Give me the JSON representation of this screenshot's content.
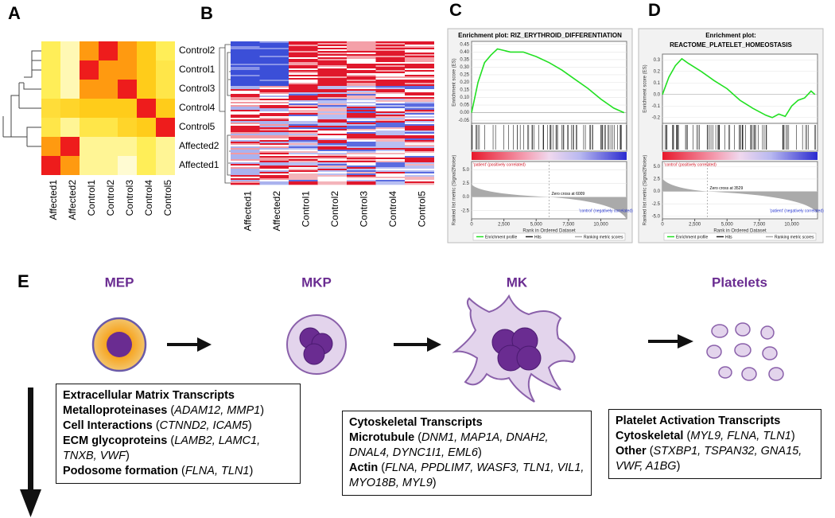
{
  "panel_a": {
    "label": "A",
    "rows": [
      "Control2",
      "Control1",
      "Control3",
      "Control4",
      "Control5",
      "Affected2",
      "Affected1"
    ],
    "columns": [
      "Affected1",
      "Affected2",
      "Control1",
      "Control2",
      "Control3",
      "Control4",
      "Control5"
    ],
    "values": [
      [
        0.4,
        0.25,
        0.8,
        1,
        0.8,
        0.6,
        0.4
      ],
      [
        0.4,
        0.25,
        1,
        0.8,
        0.8,
        0.6,
        0.45
      ],
      [
        0.4,
        0.25,
        0.8,
        0.8,
        1,
        0.6,
        0.45
      ],
      [
        0.5,
        0.55,
        0.6,
        0.6,
        0.6,
        1,
        0.6
      ],
      [
        0.45,
        0.3,
        0.45,
        0.45,
        0.55,
        0.6,
        1
      ],
      [
        0.8,
        1,
        0.3,
        0.3,
        0.3,
        0.4,
        0.3
      ],
      [
        1,
        0.8,
        0.3,
        0.3,
        0.2,
        0.4,
        0.3
      ]
    ],
    "clim": [
      0.2,
      1
    ],
    "colors": [
      "#fffbd2",
      "#ffee58",
      "#ffcc1a",
      "#ff9a10",
      "#ee1c1c"
    ]
  },
  "panel_b": {
    "label": "B",
    "columns": [
      "Affected1",
      "Affected2",
      "Control1",
      "Control2",
      "Control3",
      "Control4",
      "Control5"
    ]
  },
  "panel_c": {
    "label": "C",
    "title": "Enrichment plot: RIZ_ERYTHROID_DIFFERENTIATION",
    "ylabel": "Enrichment score (ES)",
    "metric_ylabel": "Ranked list metric (Signal2Noise)",
    "xlabel": "Rank in Ordered Dataset",
    "positive_note": "'patient' (positively correlated)",
    "zero_cross": "Zero cross at 6009",
    "negative_note": "'control' (negatively correlated)",
    "legend": [
      "Enrichment profile",
      "Hits",
      "Ranking metric scores"
    ],
    "color": "#22e022",
    "x": [
      0,
      500,
      1000,
      1500,
      2000,
      2500,
      3000,
      4000,
      5000,
      6000,
      7000,
      8000,
      9000,
      10000,
      11000,
      11800
    ],
    "values": [
      0,
      0.2,
      0.33,
      0.38,
      0.42,
      0.41,
      0.4,
      0.4,
      0.37,
      0.33,
      0.28,
      0.22,
      0.16,
      0.09,
      0.03,
      0
    ],
    "xlim": [
      0,
      12000
    ],
    "xticks": [
      0,
      {
        "value": 2500,
        "label": "2,500"
      },
      {
        "value": 5000,
        "label": "5,000"
      },
      {
        "value": 7500,
        "label": "7,500"
      },
      {
        "value": 10000,
        "label": "10,000"
      }
    ],
    "ylim": [
      -0.07,
      0.47
    ],
    "yticks": [
      0.45,
      {
        "value": 0.4,
        "label": "0.40"
      },
      0.35,
      {
        "value": 0.3,
        "label": "0.30"
      },
      0.25,
      {
        "value": 0.2,
        "label": "0.20"
      },
      0.15,
      {
        "value": 0.1,
        "label": "0.10"
      },
      0.05,
      {
        "value": 0,
        "label": "0.00"
      },
      -0.05
    ],
    "metric_ylim": [
      -4,
      6.5
    ],
    "metric_yticks": [
      {
        "value": 5,
        "label": "5.0"
      },
      {
        "value": 2.5,
        "label": "2.5"
      },
      {
        "value": 0,
        "label": "0.0"
      },
      {
        "value": -2.5,
        "label": "-2.5"
      }
    ]
  },
  "panel_d": {
    "label": "D",
    "title": "Enrichment plot:",
    "subtitle": "REACTOME_PLATELET_HOMEOSTASIS",
    "ylabel": "Enrichment score (ES)",
    "metric_ylabel": "Ranked list metric (Signal2Noise)",
    "xlabel": "Rank in Ordered Dataset",
    "positive_note": "'control' (positively correlated)",
    "zero_cross": "Zero cross at 3529",
    "negative_note": "'patient' (negatively correlated)",
    "legend": [
      "Enrichment profile",
      "Hits",
      "Ranking metric scores"
    ],
    "color": "#22e022",
    "x": [
      0,
      500,
      1000,
      1500,
      2000,
      3000,
      4000,
      5000,
      6000,
      7000,
      8000,
      8500,
      9000,
      9500,
      10000,
      10500,
      11000,
      11500,
      11800
    ],
    "values": [
      0,
      0.15,
      0.25,
      0.31,
      0.27,
      0.2,
      0.12,
      0.05,
      -0.05,
      -0.12,
      -0.18,
      -0.2,
      -0.17,
      -0.19,
      -0.1,
      -0.05,
      -0.03,
      0.03,
      0
    ],
    "xlim": [
      0,
      12000
    ],
    "xticks": [
      0,
      {
        "value": 2500,
        "label": "2,500"
      },
      {
        "value": 5000,
        "label": "5,000"
      },
      {
        "value": 7500,
        "label": "7,500"
      },
      {
        "value": 10000,
        "label": "10,000"
      }
    ],
    "ylim": [
      -0.25,
      0.35
    ],
    "yticks": [
      0.3,
      0.2,
      0.1,
      {
        "value": 0,
        "label": "0.0"
      },
      -0.1,
      -0.2
    ],
    "metric_ylim": [
      -5.5,
      6
    ],
    "metric_yticks": [
      {
        "value": 5,
        "label": "5.0"
      },
      {
        "value": 2.5,
        "label": "2.5"
      },
      {
        "value": 0,
        "label": "0.0"
      },
      {
        "value": -2.5,
        "label": "-2.5"
      },
      {
        "value": -5,
        "label": "-5.0"
      }
    ]
  },
  "panel_e": {
    "label": "E",
    "stages": [
      "MEP",
      "MKP",
      "MK",
      "Platelets"
    ],
    "boxes": [
      {
        "title": "Extracellular Matrix Transcripts",
        "groups": [
          {
            "name": "Metalloproteinases",
            "genes": "ADAM12, MMP1"
          },
          {
            "name": "Cell Interactions",
            "genes": "CTNND2, ICAM5"
          },
          {
            "name": "ECM glycoproteins",
            "genes": "LAMB2, LAMC1, TNXB, VWF"
          },
          {
            "name": "Podosome formation",
            "genes": "FLNA, TLN1"
          }
        ]
      },
      {
        "title": "Cytoskeletal Transcripts",
        "groups": [
          {
            "name": "Microtubule",
            "genes": "DNM1, MAP1A, DNAH2, DNAL4, DYNC1I1, EML6"
          },
          {
            "name": "Actin",
            "genes": "FLNA, PPDLIM7, WASF3, TLN1, VIL1, MYO18B, MYL9"
          }
        ]
      },
      {
        "title": "Platelet Activation Transcripts",
        "groups": [
          {
            "name": "Cytoskeletal",
            "genes": "MYL9, FLNA, TLN1"
          },
          {
            "name": "Other",
            "genes": "STXBP1, TSPAN32, GNA15, VWF, A1BG"
          }
        ]
      }
    ]
  }
}
